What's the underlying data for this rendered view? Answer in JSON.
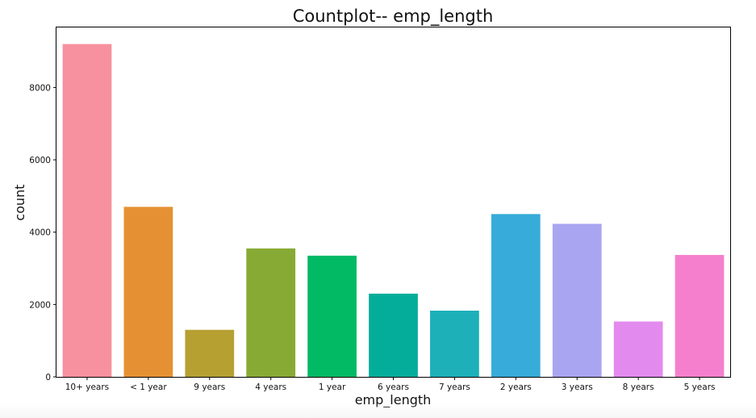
{
  "chart_data": {
    "type": "bar",
    "title": "Countplot-- emp_length",
    "xlabel": "emp_length",
    "ylabel": "count",
    "categories": [
      "10+ years",
      "< 1 year",
      "9 years",
      "4 years",
      "1 year",
      "6 years",
      "7 years",
      "2 years",
      "3 years",
      "8 years",
      "5 years"
    ],
    "values": [
      9200,
      4700,
      1300,
      3550,
      3350,
      2300,
      1830,
      4500,
      4230,
      1530,
      3370
    ],
    "colors": [
      "#f7909f",
      "#e59133",
      "#b7a032",
      "#87aa34",
      "#02b964",
      "#04ad9a",
      "#1db0b9",
      "#37abd9",
      "#a9a5f0",
      "#e38aee",
      "#f57fcc"
    ],
    "yticks": [
      0,
      2000,
      4000,
      6000,
      8000
    ],
    "ylim": [
      0,
      9660
    ],
    "grid": false,
    "legend": "none"
  }
}
